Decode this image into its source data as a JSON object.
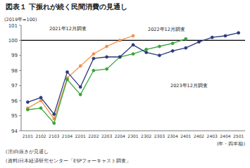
{
  "chart_data": {
    "type": "line",
    "title": "図表１ 下振れが続く民間消費の見通し",
    "y_label": "(2019年=100)",
    "x_label": "(年・四半期)",
    "note": "(注)白抜きが見通し",
    "source": "(資料)日本経済研究センター「ESPフォーキャスト調査」",
    "categories": [
      "2101",
      "2102",
      "2103",
      "2104",
      "2201",
      "2202",
      "2203",
      "2204",
      "2301",
      "2302",
      "2303",
      "2304",
      "2401",
      "2402",
      "2403",
      "2404",
      "2501"
    ],
    "ylim": [
      94,
      101
    ],
    "yticks": [
      94,
      95,
      96,
      97,
      98,
      99,
      100,
      101
    ],
    "reference_line": 100,
    "grid": false,
    "series": [
      {
        "name": "2021年12月調査",
        "color": "#f0904a",
        "marker": "circle",
        "values": [
          95.5,
          96.0,
          94.8,
          97.5,
          98.3,
          99.1,
          99.6,
          100.0,
          100.3,
          null,
          null,
          null,
          null,
          null,
          null,
          null,
          null
        ]
      },
      {
        "name": "2022年12月調査",
        "color": "#3aa63a",
        "marker": "circle",
        "values": [
          95.4,
          95.5,
          94.5,
          97.4,
          96.4,
          98.0,
          98.1,
          98.9,
          99.1,
          99.4,
          99.6,
          99.8,
          100.1,
          null,
          null,
          null,
          null
        ]
      },
      {
        "name": "2023年12月調査",
        "color": "#2c3a7c",
        "marker": "circle",
        "values": [
          95.9,
          96.2,
          95.1,
          97.9,
          96.9,
          98.8,
          98.9,
          98.9,
          99.7,
          99.2,
          99.0,
          99.3,
          99.5,
          99.9,
          100.2,
          100.3,
          100.5
        ]
      }
    ]
  }
}
